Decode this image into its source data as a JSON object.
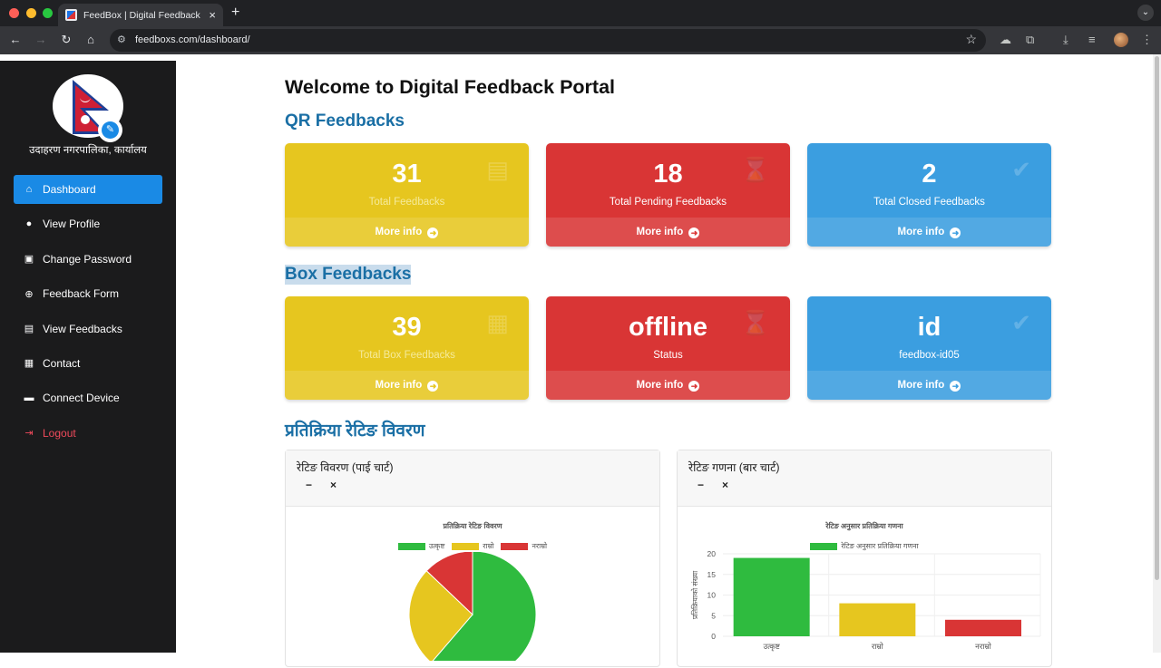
{
  "browser": {
    "tab_title": "FeedBox | Digital Feedback Box",
    "url": "feedboxs.com/dashboard/"
  },
  "sidebar": {
    "org_name": "उदाहरण नगरपालिका, कार्यालय",
    "items": [
      {
        "label": "Dashboard",
        "icon": "home-icon",
        "active": true
      },
      {
        "label": "View Profile",
        "icon": "user-icon"
      },
      {
        "label": "Change Password",
        "icon": "lock-icon"
      },
      {
        "label": "Feedback Form",
        "icon": "plus-circle-icon"
      },
      {
        "label": "View Feedbacks",
        "icon": "file-icon"
      },
      {
        "label": "Contact",
        "icon": "contact-card-icon"
      },
      {
        "label": "Connect Device",
        "icon": "archive-icon"
      },
      {
        "label": "Logout",
        "icon": "logout-icon"
      }
    ]
  },
  "main": {
    "title": "Welcome to Digital Feedback Portal",
    "qr_section": "QR Feedbacks",
    "box_section": "Box Feedbacks",
    "rating_section": "प्रतिक्रिया रेटिङ विवरण",
    "more_info": "More info",
    "qr_cards": [
      {
        "value": "31",
        "label": "Total Feedbacks",
        "color": "#e6c61f",
        "icon": "file-icon"
      },
      {
        "value": "18",
        "label": "Total Pending Feedbacks",
        "color": "#d93535",
        "icon": "hourglass-icon"
      },
      {
        "value": "2",
        "label": "Total Closed Feedbacks",
        "color": "#3b9ee0",
        "icon": "check-circle-icon"
      }
    ],
    "box_cards": [
      {
        "value": "39",
        "label": "Total Box Feedbacks",
        "color": "#e6c61f",
        "icon": "box-icon"
      },
      {
        "value": "offline",
        "label": "Status",
        "color": "#d93535",
        "icon": "hourglass-icon"
      },
      {
        "value": "id",
        "label": "feedbox-id05",
        "color": "#3b9ee0",
        "icon": "check-circle-icon"
      }
    ]
  },
  "pie_panel": {
    "title": "रेटिङ विवरण (पाई चार्ट)",
    "minimize": "−",
    "close": "×"
  },
  "bar_panel": {
    "title": "रेटिङ गणना (बार चार्ट)",
    "minimize": "−",
    "close": "×"
  },
  "chart_data": [
    {
      "type": "pie",
      "title": "प्रतिक्रिया रेटिङ विवरण",
      "categories": [
        "उत्कृष्ट",
        "राम्रो",
        "नराम्रो"
      ],
      "values": [
        19,
        8,
        4
      ],
      "colors": [
        "#2fbb3f",
        "#e6c61f",
        "#d93535"
      ],
      "legend": "top"
    },
    {
      "type": "bar",
      "title": "रेटिङ अनुसार प्रतिक्रिया गणना",
      "series_name": "रेटिङ अनुसार प्रतिक्रिया गणना",
      "categories": [
        "उत्कृष्ट",
        "राम्रो",
        "नराम्रो"
      ],
      "values": [
        19,
        8,
        4
      ],
      "colors": [
        "#2fbb3f",
        "#e6c61f",
        "#d93535"
      ],
      "ylabel": "प्रतिक्रियाको संख्या",
      "ylim": [
        0,
        20
      ],
      "yticks": [
        "0",
        "5",
        "10",
        "15",
        "20"
      ],
      "legend": "top"
    }
  ]
}
